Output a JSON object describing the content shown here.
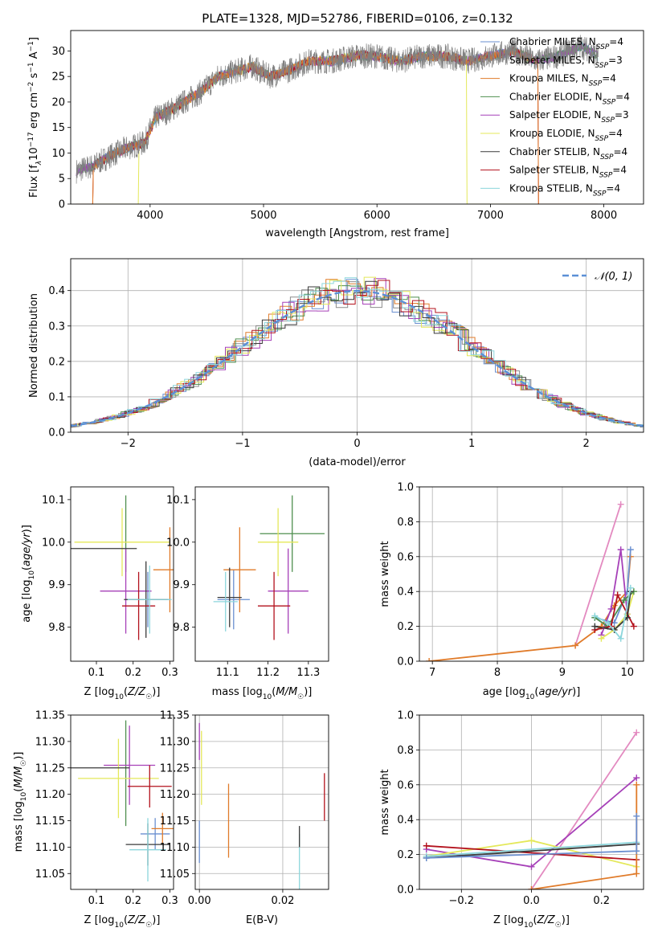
{
  "figure": {
    "title": "PLATE=1328, MJD=52786, FIBERID=0106, z=0.132"
  },
  "series_colors": {
    "Chabrier MILES": "#6a8fd0",
    "Salpeter MILES": "#8c8c8c",
    "Kroupa MILES": "#e07b2a",
    "Chabrier ELODIE": "#4f8f4f",
    "Salpeter ELODIE": "#a640b8",
    "Kroupa ELODIE": "#e4e85a",
    "Chabrier STELIB": "#3a3a3a",
    "Salpeter STELIB": "#b3111c",
    "Kroupa STELIB": "#8cd6dc"
  },
  "chart_data": [
    {
      "id": "spectrum",
      "type": "line",
      "xlabel": "wavelength [Angstrom, rest frame]",
      "ylabel": "Flux [f_λ 10^-17 erg cm^-2 s^-1 A^-1]",
      "xlim": [
        3300,
        8350
      ],
      "ylim": [
        0,
        34
      ],
      "xticks": [
        4000,
        5000,
        6000,
        7000,
        8000
      ],
      "yticks": [
        0,
        5,
        10,
        15,
        20,
        25,
        30
      ],
      "grid": false,
      "legend": [
        "Chabrier MILES, N_SSP=4",
        "Salpeter MILES, N_SSP=3",
        "Kroupa MILES, N_SSP=4",
        "Chabrier ELODIE, N_SSP=4",
        "Salpeter ELODIE, N_SSP=3",
        "Kroupa ELODIE, N_SSP=4",
        "Chabrier STELIB, N_SSP=4",
        "Salpeter STELIB, N_SSP=4",
        "Kroupa STELIB, N_SSP=4"
      ],
      "legend_location": "right",
      "continuum": {
        "x": [
          3350,
          3500,
          3650,
          3800,
          3950,
          4050,
          4150,
          4300,
          4450,
          4600,
          4750,
          4900,
          5050,
          5200,
          5400,
          5600,
          5800,
          6000,
          6200,
          6400,
          6600,
          6800,
          7000,
          7200,
          7400,
          7600,
          7800,
          7950
        ],
        "y": [
          6.5,
          7.5,
          9.5,
          11,
          12,
          17,
          18,
          20,
          22,
          25,
          26,
          27,
          25,
          26,
          28,
          28,
          29,
          29,
          28,
          29,
          29,
          28,
          29,
          30,
          28,
          29,
          31,
          29
        ]
      },
      "cutoffs": {
        "Kroupa MILES": [
          3500,
          7420
        ],
        "Kroupa ELODIE": [
          3900,
          6790
        ],
        "Salpeter STELIB": [
          3500,
          7420
        ],
        "Chabrier STELIB": [
          3350,
          7420
        ]
      }
    },
    {
      "id": "residuals",
      "type": "histogram",
      "xlabel": "(data-model)/error",
      "ylabel": "Normed distribution",
      "xlim": [
        -2.5,
        2.5
      ],
      "ylim": [
        0,
        0.49
      ],
      "xticks": [
        -2,
        -1,
        0,
        1,
        2
      ],
      "yticks": [
        0.0,
        0.1,
        0.2,
        0.3,
        0.4
      ],
      "grid": true,
      "legend": [
        "𝒩(0, 1)"
      ],
      "legend_location": "upper right",
      "bin_width": 0.1
    },
    {
      "id": "age-Z",
      "type": "errorbar",
      "xlabel": "Z [log10(Z/Z☉)]",
      "ylabel": "age [log10(age/yr)]",
      "xlim": [
        0.03,
        0.31
      ],
      "ylim": [
        9.72,
        10.13
      ],
      "xticks": [
        0.1,
        0.2,
        0.3
      ],
      "yticks": [
        9.8,
        9.9,
        10.0,
        10.1
      ],
      "points": [
        {
          "series": "Chabrier MILES",
          "x": 0.24,
          "y": 9.865,
          "xerr": 0.06,
          "yerr": 0.065
        },
        {
          "series": "Kroupa MILES",
          "x": 0.3,
          "y": 9.935,
          "xerr": 0.045,
          "yerr": 0.1
        },
        {
          "series": "Chabrier ELODIE",
          "x": 0.18,
          "y": 10.02,
          "xerr": 0.0,
          "yerr": 0.09
        },
        {
          "series": "Salpeter ELODIE",
          "x": 0.18,
          "y": 9.885,
          "xerr": 0.07,
          "yerr": 0.1
        },
        {
          "series": "Kroupa ELODIE",
          "x": 0.17,
          "y": 10.0,
          "xerr": 0.13,
          "yerr": 0.08
        },
        {
          "series": "Chabrier STELIB",
          "x": 0.11,
          "y": 9.985,
          "xerr": 0.1,
          "yerr": 0.0
        },
        {
          "series": "Chabrier STELIB",
          "x": 0.235,
          "y": 9.865,
          "xerr": 0.06,
          "yerr": 0.09
        },
        {
          "series": "Salpeter STELIB",
          "x": 0.215,
          "y": 9.85,
          "xerr": 0.045,
          "yerr": 0.08
        },
        {
          "series": "Kroupa STELIB",
          "x": 0.245,
          "y": 9.865,
          "xerr": 0.06,
          "yerr": 0.08
        }
      ]
    },
    {
      "id": "age-mass",
      "type": "errorbar",
      "xlabel": "mass [log10(M/M☉)]",
      "ylabel": "",
      "xlim": [
        11.02,
        11.35
      ],
      "ylim": [
        9.72,
        10.13
      ],
      "xticks": [
        11.1,
        11.2,
        11.3
      ],
      "yticks": [
        9.8,
        9.9,
        10.0,
        10.1
      ],
      "points": [
        {
          "series": "Chabrier MILES",
          "x": 11.115,
          "y": 9.865,
          "xerr": 0.04,
          "yerr": 0.07
        },
        {
          "series": "Kroupa MILES",
          "x": 11.13,
          "y": 9.935,
          "xerr": 0.04,
          "yerr": 0.1
        },
        {
          "series": "Chabrier ELODIE",
          "x": 11.26,
          "y": 10.02,
          "xerr": 0.08,
          "yerr": 0.09
        },
        {
          "series": "Salpeter ELODIE",
          "x": 11.25,
          "y": 9.885,
          "xerr": 0.05,
          "yerr": 0.1
        },
        {
          "series": "Kroupa ELODIE",
          "x": 11.225,
          "y": 10.0,
          "xerr": 0.05,
          "yerr": 0.08
        },
        {
          "series": "Chabrier STELIB",
          "x": 11.105,
          "y": 9.87,
          "xerr": 0.03,
          "yerr": 0.07
        },
        {
          "series": "Salpeter STELIB",
          "x": 11.215,
          "y": 9.85,
          "xerr": 0.04,
          "yerr": 0.08
        },
        {
          "series": "Kroupa STELIB",
          "x": 11.095,
          "y": 9.86,
          "xerr": 0.03,
          "yerr": 0.07
        }
      ]
    },
    {
      "id": "weight-age",
      "type": "line",
      "xlabel": "age [log10(age/yr)]",
      "ylabel": "mass weight",
      "xlim": [
        6.8,
        10.25
      ],
      "ylim": [
        0,
        1.0
      ],
      "xticks": [
        7,
        8,
        9,
        10
      ],
      "yticks": [
        0.0,
        0.2,
        0.4,
        0.6,
        0.8,
        1.0
      ],
      "grid": true,
      "series": [
        {
          "name": "Salpeter MILES",
          "x": [
            9.2,
            9.9
          ],
          "y": [
            0.09,
            0.9
          ],
          "color": "#e38ac0"
        },
        {
          "name": "Kroupa MILES",
          "x": [
            6.95,
            9.2,
            9.6,
            9.8,
            10.0,
            10.05
          ],
          "y": [
            0.0,
            0.09,
            0.2,
            0.32,
            0.4,
            0.6
          ]
        },
        {
          "name": "Chabrier MILES",
          "x": [
            9.5,
            9.8,
            10.0,
            10.05
          ],
          "y": [
            0.25,
            0.22,
            0.4,
            0.64
          ]
        },
        {
          "name": "Salpeter ELODIE",
          "x": [
            9.6,
            9.75,
            9.9,
            10.0
          ],
          "y": [
            0.15,
            0.3,
            0.64,
            0.27
          ]
        },
        {
          "name": "Kroupa ELODIE",
          "x": [
            9.6,
            9.8,
            10.0,
            10.1
          ],
          "y": [
            0.13,
            0.18,
            0.27,
            0.4
          ]
        },
        {
          "name": "Chabrier ELODIE",
          "x": [
            9.5,
            9.7,
            9.95,
            10.1
          ],
          "y": [
            0.25,
            0.2,
            0.35,
            0.4
          ]
        },
        {
          "name": "Salpeter STELIB",
          "x": [
            9.5,
            9.75,
            9.85,
            10.1
          ],
          "y": [
            0.18,
            0.2,
            0.38,
            0.2
          ]
        },
        {
          "name": "Chabrier STELIB",
          "x": [
            9.5,
            9.8,
            10.0,
            10.05
          ],
          "y": [
            0.2,
            0.18,
            0.25,
            0.4
          ]
        },
        {
          "name": "Kroupa STELIB",
          "x": [
            9.5,
            9.7,
            9.9,
            10.05
          ],
          "y": [
            0.26,
            0.22,
            0.13,
            0.42
          ]
        }
      ]
    },
    {
      "id": "mass-Z",
      "type": "errorbar",
      "xlabel": "Z [log10(Z/Z☉)]",
      "ylabel": "mass [log10(M/M☉)]",
      "xlim": [
        0.03,
        0.31
      ],
      "ylim": [
        11.02,
        11.35
      ],
      "xticks": [
        0.1,
        0.2,
        0.3
      ],
      "yticks": [
        11.05,
        11.1,
        11.15,
        11.2,
        11.25,
        11.3,
        11.35
      ],
      "points": [
        {
          "series": "Chabrier MILES",
          "x": 0.26,
          "y": 11.125,
          "xerr": 0.04,
          "yerr": 0.03
        },
        {
          "series": "Kroupa MILES",
          "x": 0.28,
          "y": 11.135,
          "xerr": 0.03,
          "yerr": 0.03
        },
        {
          "series": "Chabrier ELODIE",
          "x": 0.18,
          "y": 11.24,
          "xerr": 0.0,
          "yerr": 0.1
        },
        {
          "series": "Salpeter ELODIE",
          "x": 0.19,
          "y": 11.255,
          "xerr": 0.07,
          "yerr": 0.075
        },
        {
          "series": "Kroupa ELODIE",
          "x": 0.16,
          "y": 11.23,
          "xerr": 0.11,
          "yerr": 0.075
        },
        {
          "series": "Chabrier STELIB",
          "x": 0.11,
          "y": 11.25,
          "xerr": 0.08,
          "yerr": 0.0
        },
        {
          "series": "Chabrier STELIB",
          "x": 0.24,
          "y": 11.105,
          "xerr": 0.06,
          "yerr": 0.04
        },
        {
          "series": "Salpeter STELIB",
          "x": 0.245,
          "y": 11.215,
          "xerr": 0.06,
          "yerr": 0.04
        },
        {
          "series": "Kroupa STELIB",
          "x": 0.24,
          "y": 11.095,
          "xerr": 0.05,
          "yerr": 0.06
        }
      ]
    },
    {
      "id": "mass-EBV",
      "type": "errorbar",
      "xlabel": "E(B-V)",
      "ylabel": "",
      "xlim": [
        -0.001,
        0.031
      ],
      "ylim": [
        11.02,
        11.35
      ],
      "xticks": [
        0.0,
        0.02
      ],
      "yticks": [
        11.05,
        11.1,
        11.15,
        11.2,
        11.25,
        11.3,
        11.35
      ],
      "grid": true,
      "points": [
        {
          "series": "Chabrier MILES",
          "x": 0.0,
          "y": 11.11,
          "xerr": 0.0,
          "yerr": 0.04
        },
        {
          "series": "Salpeter ELODIE",
          "x": 0.0,
          "y": 11.3,
          "xerr": 0.0,
          "yerr": 0.035
        },
        {
          "series": "Kroupa ELODIE",
          "x": 0.0005,
          "y": 11.25,
          "xerr": 0.0,
          "yerr": 0.07
        },
        {
          "series": "Kroupa MILES",
          "x": 0.007,
          "y": 11.15,
          "xerr": 0.0,
          "yerr": 0.07
        },
        {
          "series": "Kroupa STELIB",
          "x": 0.024,
          "y": 11.07,
          "xerr": 0.0,
          "yerr": 0.055
        },
        {
          "series": "Chabrier STELIB",
          "x": 0.024,
          "y": 11.12,
          "xerr": 0.0,
          "yerr": 0.02
        },
        {
          "series": "Salpeter STELIB",
          "x": 0.03,
          "y": 11.195,
          "xerr": 0.0,
          "yerr": 0.045
        }
      ]
    },
    {
      "id": "weight-Z",
      "type": "line",
      "xlabel": "Z [log10(Z/Z☉)]",
      "ylabel": "mass weight",
      "xlim": [
        -0.32,
        0.32
      ],
      "ylim": [
        0,
        1.0
      ],
      "xticks": [
        -0.2,
        0.0,
        0.2
      ],
      "yticks": [
        0.0,
        0.2,
        0.4,
        0.6,
        0.8,
        1.0
      ],
      "grid": true,
      "series": [
        {
          "name": "Salpeter MILES",
          "x": [
            0.0,
            0.3
          ],
          "y": [
            0.0,
            0.9
          ],
          "color": "#e38ac0"
        },
        {
          "name": "Salpeter ELODIE",
          "x": [
            -0.3,
            0.0,
            0.3
          ],
          "y": [
            0.23,
            0.13,
            0.64
          ]
        },
        {
          "name": "Kroupa ELODIE",
          "x": [
            -0.3,
            0.0,
            0.3
          ],
          "y": [
            0.19,
            0.28,
            0.13
          ]
        },
        {
          "name": "Salpeter STELIB",
          "x": [
            -0.3,
            0.3
          ],
          "y": [
            0.25,
            0.17
          ]
        },
        {
          "name": "Chabrier STELIB",
          "x": [
            -0.3,
            0.3
          ],
          "y": [
            0.18,
            0.26
          ]
        },
        {
          "name": "Kroupa STELIB",
          "x": [
            -0.3,
            0.3
          ],
          "y": [
            0.19,
            0.27
          ]
        },
        {
          "name": "Kroupa MILES",
          "x": [
            0.0,
            0.3,
            0.3
          ],
          "y": [
            0.0,
            0.09,
            0.6
          ]
        },
        {
          "name": "Chabrier MILES",
          "x": [
            -0.3,
            0.3,
            0.3
          ],
          "y": [
            0.18,
            0.22,
            0.42
          ]
        }
      ]
    }
  ]
}
